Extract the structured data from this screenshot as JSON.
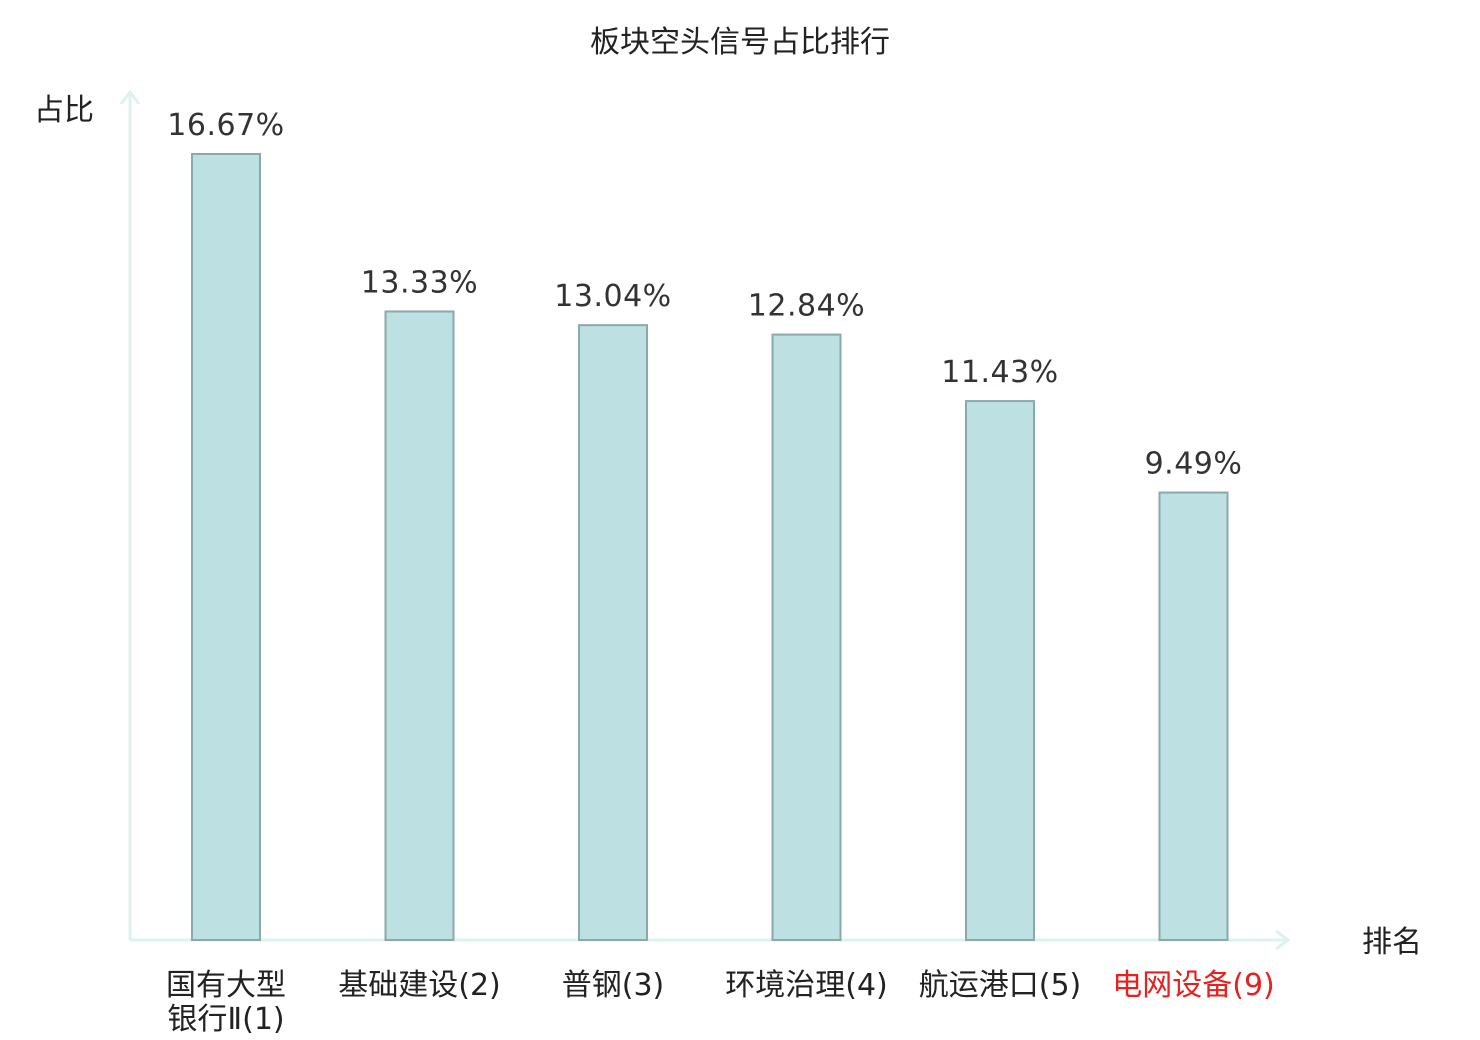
{
  "chart_data": {
    "type": "bar",
    "title": "板块空头信号占比排行",
    "ylabel": "占比",
    "xlabel": "排名",
    "categories": [
      {
        "lines": [
          "国有大型",
          "银行Ⅱ(1)"
        ],
        "highlight": false
      },
      {
        "lines": [
          "基础建设(2)"
        ],
        "highlight": false
      },
      {
        "lines": [
          "普钢(3)"
        ],
        "highlight": false
      },
      {
        "lines": [
          "环境治理(4)"
        ],
        "highlight": false
      },
      {
        "lines": [
          "航运港口(5)"
        ],
        "highlight": false
      },
      {
        "lines": [
          "电网设备(9)"
        ],
        "highlight": true
      }
    ],
    "values": [
      16.67,
      13.33,
      13.04,
      12.84,
      11.43,
      9.49
    ],
    "value_labels": [
      "16.67%",
      "13.33%",
      "13.04%",
      "12.84%",
      "11.43%",
      "9.49%"
    ],
    "ylim": [
      0,
      16.67
    ],
    "grid": false,
    "legend": "none",
    "colors": {
      "bar_fill": "#bde0e2",
      "bar_stroke": "#8aa9a9",
      "axis": "#dff1ef",
      "highlight_text": "#e82020",
      "text": "#222222"
    }
  }
}
